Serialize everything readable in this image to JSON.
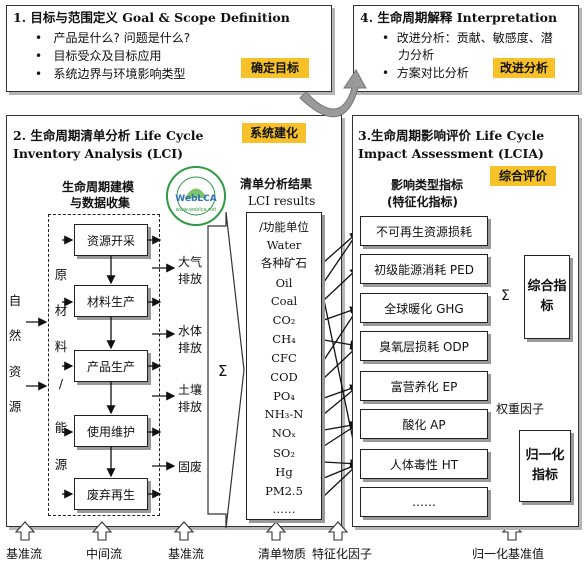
{
  "panel1": {
    "title": "1.  目标与范围定义  Goal & Scope Definition",
    "bullets": [
      "产品是什么?  问题是什么?",
      "目标受众及目标应用",
      "系统边界与环境影响类型"
    ],
    "tag": "确定目标"
  },
  "panel4": {
    "title": "4.  生命周期解释  Interpretation",
    "bullets": [
      "改进分析：贡献、敏感度、潜",
      "力分析",
      "方案对比分析"
    ],
    "tag": "改进分析"
  },
  "panel2": {
    "title_line1": "2.  生命周期清单分析 Life Cycle",
    "title_line2": "Inventory Analysis (LCI)",
    "tag": "系统建化",
    "modeling_line1": "生命周期建模",
    "modeling_line2": "与数据收集",
    "logo_text": "WebLCA",
    "stages": [
      "资源开采",
      "材料生产",
      "产品生产",
      "使用维护",
      "废弃再生"
    ],
    "left_vertical": [
      "自",
      "然",
      "资",
      "源"
    ],
    "mid_vertical": [
      "原",
      "材",
      "料",
      "/",
      "能",
      "源"
    ],
    "emissions": [
      "大气\n排放",
      "水体\n排放",
      "土壤\n排放",
      "固废"
    ],
    "sigma": "Σ",
    "result_title": "清单分析结果",
    "result_sub": "LCI results",
    "inventory": [
      "/功能单位",
      "Water",
      "各种矿石",
      "Oil",
      "Coal",
      "CO₂",
      "CH₄",
      "CFC",
      "COD",
      "PO₄",
      "NH₃-N",
      "NOₓ",
      "SO₂",
      "Hg",
      "PM2.5",
      "……"
    ]
  },
  "panel3": {
    "title_line1": "3.生命周期影响评价 Life Cycle",
    "title_line2": "Impact Assessment (LCIA)",
    "tag": "综合评价",
    "impact_title_line1": "影响类型指标",
    "impact_title_line2": "(特征化指标)",
    "impacts": [
      "不可再生资源损耗",
      "初级能源消耗 PED",
      "全球暖化 GHG",
      "臭氧层损耗 ODP",
      "富营养化 EP",
      "酸化  AP",
      "人体毒性 HT",
      "……"
    ],
    "sigma": "Σ",
    "composite": "综合指标",
    "weight": "权重因子",
    "normalized": "归一化指标"
  },
  "bottom": {
    "labels": [
      "基准流",
      "中间流",
      "基准流",
      "清单物质",
      "特征化因子",
      "归一化基准值"
    ]
  }
}
